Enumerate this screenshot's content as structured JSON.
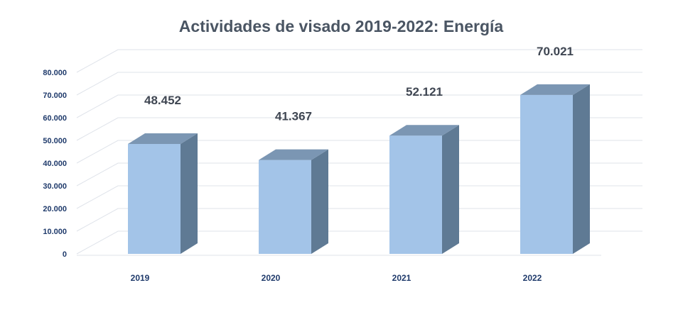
{
  "chart_data": {
    "type": "bar",
    "title": "Actividades de visado 2019-2022: Energía",
    "categories": [
      "2019",
      "2020",
      "2021",
      "2022"
    ],
    "values": [
      48452,
      41367,
      52121,
      70021
    ],
    "data_labels": [
      "48.452",
      "41.367",
      "52.121",
      "70.021"
    ],
    "ylim": [
      0,
      80000
    ],
    "yticks": [
      0,
      10000,
      20000,
      30000,
      40000,
      50000,
      60000,
      70000,
      80000
    ],
    "ytick_labels": [
      "0",
      "10.000",
      "20.000",
      "30.000",
      "40.000",
      "50.000",
      "60.000",
      "70.000",
      "80.000"
    ],
    "grid": true,
    "style": "3d-column",
    "colors": {
      "front": "#a3c4e8",
      "side": "#5f7a94",
      "top": "#7b96b3",
      "text": "#1f3a6b",
      "title": "#4a5563"
    }
  }
}
